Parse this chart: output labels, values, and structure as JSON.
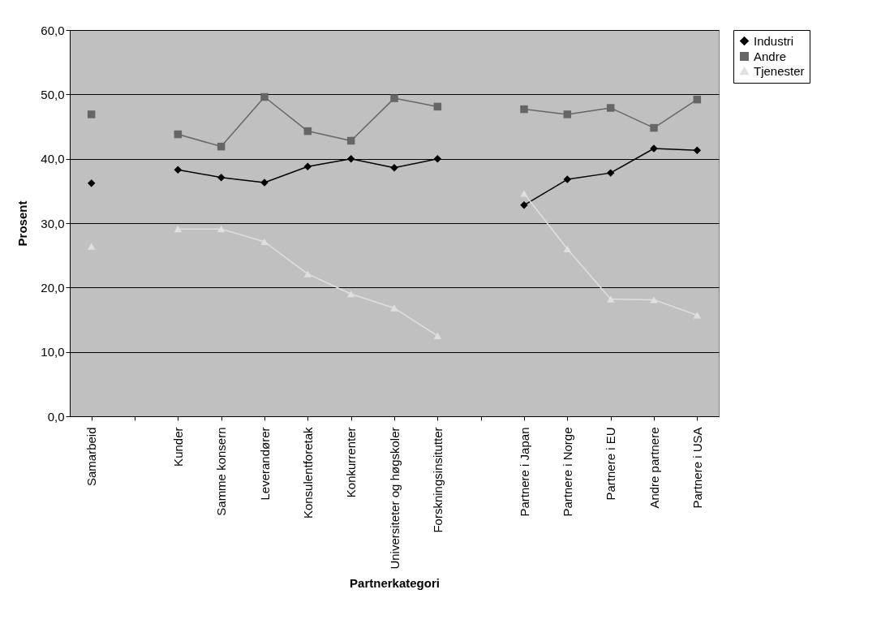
{
  "chart_data": {
    "type": "line",
    "xlabel": "Partnerkategori",
    "ylabel": "Prosent",
    "categories": [
      "Samarbeid",
      null,
      "Kunder",
      "Samme konsern",
      "Leverandører",
      "Konsulentforetak",
      "Konkurrenter",
      "Universiteter og høgskoler",
      "Forskningsinsitutter",
      null,
      "Partnere i Japan",
      "Partnere i Norge",
      "Partnere i EU",
      "Andre partnere",
      "Partnere i USA"
    ],
    "series": [
      {
        "name": "Industri",
        "color": "#000000",
        "marker": "diamond",
        "values": [
          36.2,
          null,
          38.3,
          37.1,
          36.3,
          38.8,
          40.0,
          38.6,
          40.0,
          null,
          32.8,
          36.8,
          37.8,
          41.6,
          41.3
        ]
      },
      {
        "name": "Andre",
        "color": "#666666",
        "marker": "square",
        "values": [
          46.9,
          null,
          43.8,
          41.9,
          49.6,
          44.3,
          42.8,
          49.4,
          48.1,
          null,
          47.7,
          46.9,
          47.9,
          44.8,
          49.2
        ]
      },
      {
        "name": "Tjenester",
        "color": "#e0e0e0",
        "marker": "triangle",
        "values": [
          26.4,
          null,
          29.1,
          29.1,
          27.1,
          22.1,
          19.0,
          16.8,
          12.5,
          null,
          34.6,
          26.0,
          18.2,
          18.1,
          15.7
        ]
      }
    ],
    "ylim": [
      0,
      60
    ],
    "yticks": [
      {
        "value": 0,
        "label": "0,0"
      },
      {
        "value": 10,
        "label": "10,0"
      },
      {
        "value": 20,
        "label": "20,0"
      },
      {
        "value": 30,
        "label": "30,0"
      },
      {
        "value": 40,
        "label": "40,0"
      },
      {
        "value": 50,
        "label": "50,0"
      },
      {
        "value": 60,
        "label": "60,0"
      }
    ],
    "grid": "y",
    "legend": "right",
    "line_style": "solid"
  }
}
